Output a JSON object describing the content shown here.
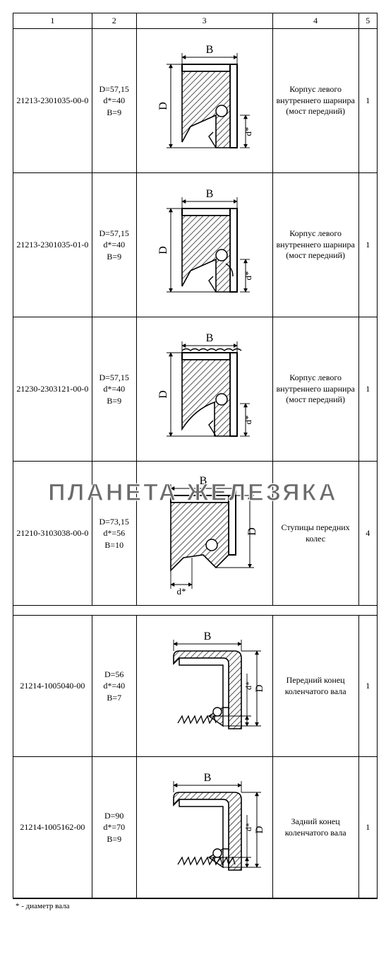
{
  "header": {
    "c1": "1",
    "c2": "2",
    "c3": "3",
    "c4": "4",
    "c5": "5"
  },
  "rows": [
    {
      "part": "21213-2301035-00-0",
      "dims": {
        "D": "D=57,15",
        "d": "d*=40",
        "B": "B=9"
      },
      "desc": "Корпус левого внутреннего шарнира (мост передний)",
      "qty": "1",
      "seal_type": "A"
    },
    {
      "part": "21213-2301035-01-0",
      "dims": {
        "D": "D=57,15",
        "d": "d*=40",
        "B": "B=9"
      },
      "desc": "Корпус левого внутреннего шарнира (мост передний)",
      "qty": "1",
      "seal_type": "A2"
    },
    {
      "part": "21230-2303121-00-0",
      "dims": {
        "D": "D=57,15",
        "d": "d*=40",
        "B": "B=9"
      },
      "desc": "Корпус левого внутреннего шарнира (мост передний)",
      "qty": "1",
      "seal_type": "A3"
    },
    {
      "part": "21210-3103038-00-0",
      "dims": {
        "D": "D=73,15",
        "d": "d*=56",
        "B": "B=10"
      },
      "desc": "Ступицы передних колес",
      "qty": "4",
      "seal_type": "B"
    },
    {
      "part": "21214-1005040-00",
      "dims": {
        "D": "D=56",
        "d": "d*=40",
        "B": "B=7"
      },
      "desc": "Передний конец коленчатого вала",
      "qty": "1",
      "seal_type": "C"
    },
    {
      "part": "21214-1005162-00",
      "dims": {
        "D": "D=90",
        "d": "d*=70",
        "B": "B=9"
      },
      "desc": "Задний конец коленчатого вала",
      "qty": "1",
      "seal_type": "C2"
    }
  ],
  "footnote": "* - диаметр вала",
  "watermark": "ПЛАНЕТА ЖЕЛЕЗЯКА",
  "colors": {
    "stroke": "#000000",
    "hatch": "#2b2b2b",
    "bg": "#ffffff"
  }
}
